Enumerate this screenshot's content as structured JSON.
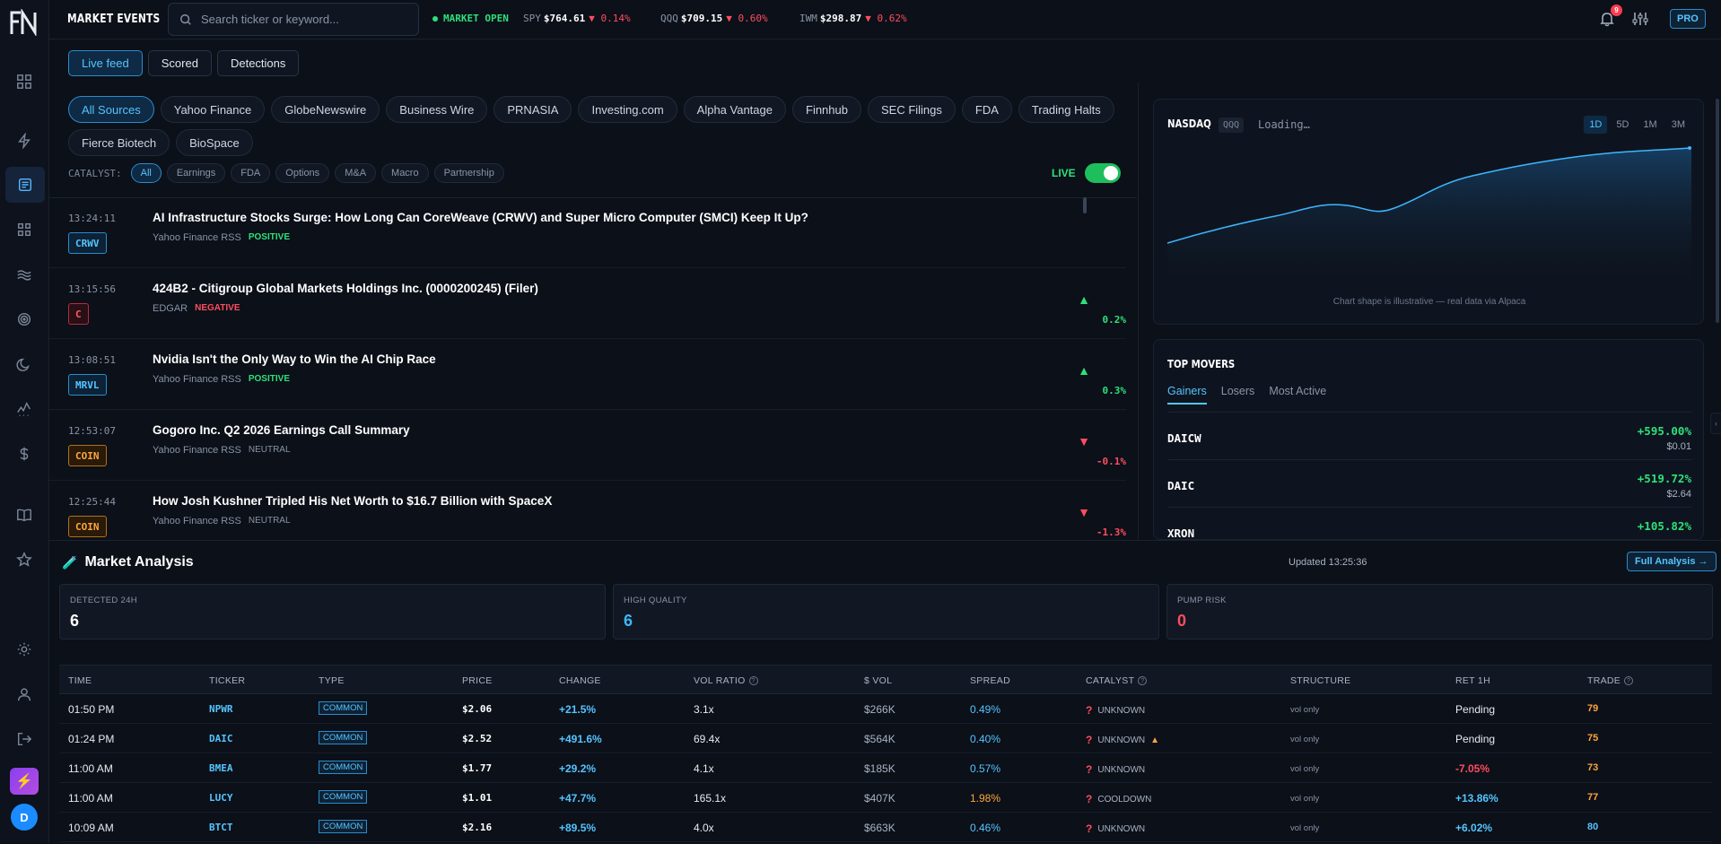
{
  "app": {
    "title": "MARKET EVENTS",
    "badge": "PRO",
    "notif_count": "9"
  },
  "search": {
    "placeholder": "Search ticker or keyword..."
  },
  "market": {
    "status": "MARKET OPEN",
    "tickers": [
      {
        "sym": "SPY",
        "price": "$764.61",
        "chg": "▼ 0.14%"
      },
      {
        "sym": "QQQ",
        "price": "$709.15",
        "chg": "▼ 0.60%"
      },
      {
        "sym": "IWM",
        "price": "$298.87",
        "chg": "▼ 0.62%"
      }
    ]
  },
  "tabs": [
    "Live feed",
    "Scored",
    "Detections"
  ],
  "sources": [
    "All Sources",
    "Yahoo Finance",
    "GlobeNewswire",
    "Business Wire",
    "PRNASIA",
    "Investing.com",
    "Alpha Vantage",
    "Finnhub",
    "SEC Filings",
    "FDA",
    "Trading Halts",
    "Fierce Biotech",
    "BioSpace"
  ],
  "catalyst": {
    "label": "CATALYST:",
    "options": [
      "All",
      "Earnings",
      "FDA",
      "Options",
      "M&A",
      "Macro",
      "Partnership"
    ],
    "live_label": "LIVE"
  },
  "feed": [
    {
      "time": "13:24:11",
      "ticker": "CRWV",
      "tcolor": "blue",
      "headline": "AI Infrastructure Stocks Surge: How Long Can CoreWeave (CRWV) and Super Micro Computer (SMCI) Keep It Up?",
      "source": "Yahoo Finance RSS",
      "sentiment": "POSITIVE",
      "sclass": "pos",
      "arrow": "",
      "pct": ""
    },
    {
      "time": "13:15:56",
      "ticker": "C",
      "tcolor": "red",
      "headline": "424B2 - Citigroup Global Markets Holdings Inc. (0000200245) (Filer)",
      "source": "EDGAR",
      "sentiment": "NEGATIVE",
      "sclass": "neg",
      "arrow": "▲",
      "pct": "0.2%",
      "dir": "up"
    },
    {
      "time": "13:08:51",
      "ticker": "MRVL",
      "tcolor": "blue",
      "headline": "Nvidia Isn't the Only Way to Win the AI Chip Race",
      "source": "Yahoo Finance RSS",
      "sentiment": "POSITIVE",
      "sclass": "pos",
      "arrow": "▲",
      "pct": "0.3%",
      "dir": "up"
    },
    {
      "time": "12:53:07",
      "ticker": "COIN",
      "tcolor": "orange",
      "headline": "Gogoro Inc. Q2 2026 Earnings Call Summary",
      "source": "Yahoo Finance RSS",
      "sentiment": "NEUTRAL",
      "sclass": "neu",
      "arrow": "▼",
      "pct": "-0.1%",
      "dir": "down"
    },
    {
      "time": "12:25:44",
      "ticker": "COIN",
      "tcolor": "orange",
      "headline": "How Josh Kushner Tripled His Net Worth to $16.7 Billion with SpaceX",
      "source": "Yahoo Finance RSS",
      "sentiment": "NEUTRAL",
      "sclass": "neu",
      "arrow": "▼",
      "pct": "-1.3%",
      "dir": "down"
    }
  ],
  "chart": {
    "title": "NASDAQ",
    "symbol": "QQQ",
    "status": "Loading…",
    "ranges": [
      "1D",
      "5D",
      "1M",
      "3M"
    ],
    "note": "Chart shape is illustrative — real data via Alpaca",
    "line_color": "#3fb6ff"
  },
  "movers": {
    "title": "TOP MOVERS",
    "tabs": [
      "Gainers",
      "Losers",
      "Most Active"
    ],
    "items": [
      {
        "sym": "DAICW",
        "chg": "+595.00%",
        "price": "$0.01"
      },
      {
        "sym": "DAIC",
        "chg": "+519.72%",
        "price": "$2.64"
      },
      {
        "sym": "XRON",
        "chg": "+105.82%",
        "price": ""
      }
    ]
  },
  "analysis": {
    "title": "Market Analysis",
    "updated": "Updated 13:25:36",
    "full_btn": "Full Analysis →",
    "stats": [
      {
        "label": "DETECTED 24H",
        "value": "6",
        "color": "#ffffff"
      },
      {
        "label": "HIGH QUALITY",
        "value": "6",
        "color": "#3fb6ff"
      },
      {
        "label": "PUMP RISK",
        "value": "0",
        "color": "#ff4d5e"
      }
    ],
    "columns": [
      "TIME",
      "TICKER",
      "TYPE",
      "PRICE",
      "CHANGE",
      "VOL RATIO",
      "$ VOL",
      "SPREAD",
      "CATALYST",
      "STRUCTURE",
      "RET 1H",
      "TRADE"
    ],
    "rows": [
      {
        "time": "01:50 PM",
        "ticker": "NPWR",
        "type": "COMMON",
        "price": "$2.06",
        "change": "+21.5%",
        "vol_ratio": "3.1x",
        "dvol": "$266K",
        "spread": "0.49%",
        "spread_c": "blue",
        "catalyst": "UNKNOWN",
        "warn": false,
        "structure": "vol only",
        "ret": "Pending",
        "ret_c": "pending",
        "trade": "79",
        "trade_c": "orange"
      },
      {
        "time": "01:24 PM",
        "ticker": "DAIC",
        "type": "COMMON",
        "price": "$2.52",
        "change": "+491.6%",
        "vol_ratio": "69.4x",
        "dvol": "$564K",
        "spread": "0.40%",
        "spread_c": "blue",
        "catalyst": "UNKNOWN",
        "warn": true,
        "structure": "vol only",
        "ret": "Pending",
        "ret_c": "pending",
        "trade": "75",
        "trade_c": "orange"
      },
      {
        "time": "11:00 AM",
        "ticker": "BMEA",
        "type": "COMMON",
        "price": "$1.77",
        "change": "+29.2%",
        "vol_ratio": "4.1x",
        "dvol": "$185K",
        "spread": "0.57%",
        "spread_c": "blue",
        "catalyst": "UNKNOWN",
        "warn": false,
        "structure": "vol only",
        "ret": "-7.05%",
        "ret_c": "neg",
        "trade": "73",
        "trade_c": "orange"
      },
      {
        "time": "11:00 AM",
        "ticker": "LUCY",
        "type": "COMMON",
        "price": "$1.01",
        "change": "+47.7%",
        "vol_ratio": "165.1x",
        "dvol": "$407K",
        "spread": "1.98%",
        "spread_c": "orange",
        "catalyst": "COOLDOWN",
        "warn": false,
        "structure": "vol only",
        "ret": "+13.86%",
        "ret_c": "pos",
        "trade": "77",
        "trade_c": "orange"
      },
      {
        "time": "10:09 AM",
        "ticker": "BTCT",
        "type": "COMMON",
        "price": "$2.16",
        "change": "+89.5%",
        "vol_ratio": "4.0x",
        "dvol": "$663K",
        "spread": "0.46%",
        "spread_c": "blue",
        "catalyst": "UNKNOWN",
        "warn": false,
        "structure": "vol only",
        "ret": "+6.02%",
        "ret_c": "pos",
        "trade": "80",
        "trade_c": "blue"
      }
    ]
  }
}
